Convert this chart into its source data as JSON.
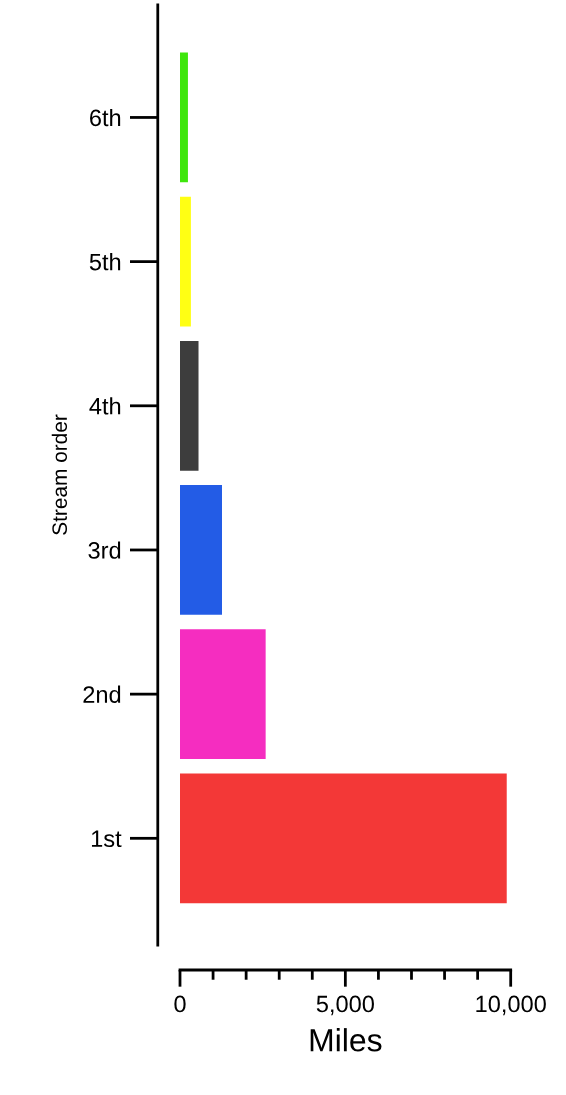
{
  "chart_data": {
    "type": "bar",
    "orientation": "horizontal",
    "xlabel": "Miles",
    "ylabel": "Stream order",
    "categories": [
      "6th",
      "5th",
      "4th",
      "3rd",
      "2nd",
      "1st"
    ],
    "values": [
      240,
      330,
      560,
      1270,
      2590,
      9880
    ],
    "colors": [
      "#3ee60c",
      "#ffff14",
      "#3d3d3d",
      "#235ce6",
      "#f52dc0",
      "#f33837"
    ],
    "xlim": [
      0,
      10000
    ],
    "xticks": [
      0,
      {
        "value": 1000,
        "label": null
      },
      {
        "value": 2000,
        "label": null
      },
      {
        "value": 3000,
        "label": null
      },
      {
        "value": 4000,
        "label": null
      },
      {
        "value": 5000,
        "label": "5,000"
      },
      {
        "value": 6000,
        "label": null
      },
      {
        "value": 7000,
        "label": null
      },
      {
        "value": 8000,
        "label": null
      },
      {
        "value": 9000,
        "label": null
      },
      {
        "value": 10000,
        "label": "10,000"
      }
    ],
    "grid": false
  }
}
